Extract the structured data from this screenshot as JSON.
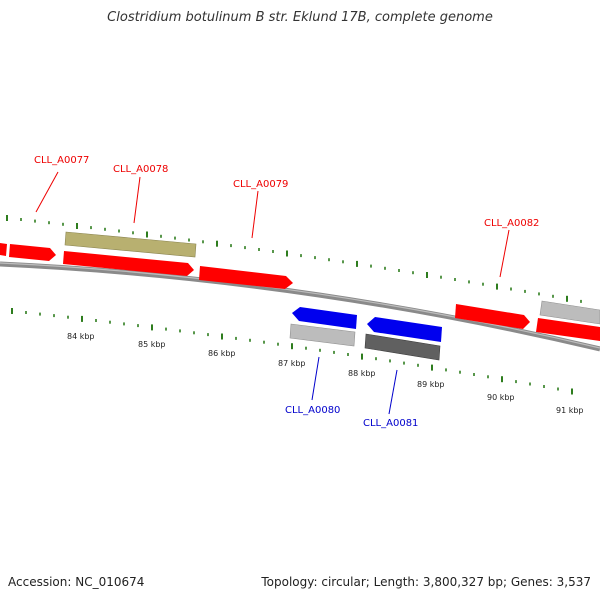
{
  "title": "Clostridium botulinum B str. Eklund 17B, complete genome",
  "accession": "Accession: NC_010674",
  "summary": "Topology: circular; Length: 3,800,327 bp; Genes: 3,537",
  "colors": {
    "forward_gene": "#ff0000",
    "reverse_gene": "#0000ee",
    "olive_feature": "#b8b070",
    "grey_feature": "#b8b8b8",
    "dark_feature": "#555555",
    "tick": "#2e7d1e",
    "backbone": "#888888"
  },
  "scale_labels": [
    "84 kbp",
    "85 kbp",
    "86 kbp",
    "87 kbp",
    "88 kbp",
    "89 kbp",
    "90 kbp",
    "91 kbp"
  ],
  "gene_labels": [
    {
      "text": "CLL_A0077",
      "strand": "forward"
    },
    {
      "text": "CLL_A0078",
      "strand": "forward"
    },
    {
      "text": "CLL_A0079",
      "strand": "forward"
    },
    {
      "text": "CLL_A0082",
      "strand": "forward"
    },
    {
      "text": "CLL_A0080",
      "strand": "reverse"
    },
    {
      "text": "CLL_A0081",
      "strand": "reverse"
    }
  ]
}
